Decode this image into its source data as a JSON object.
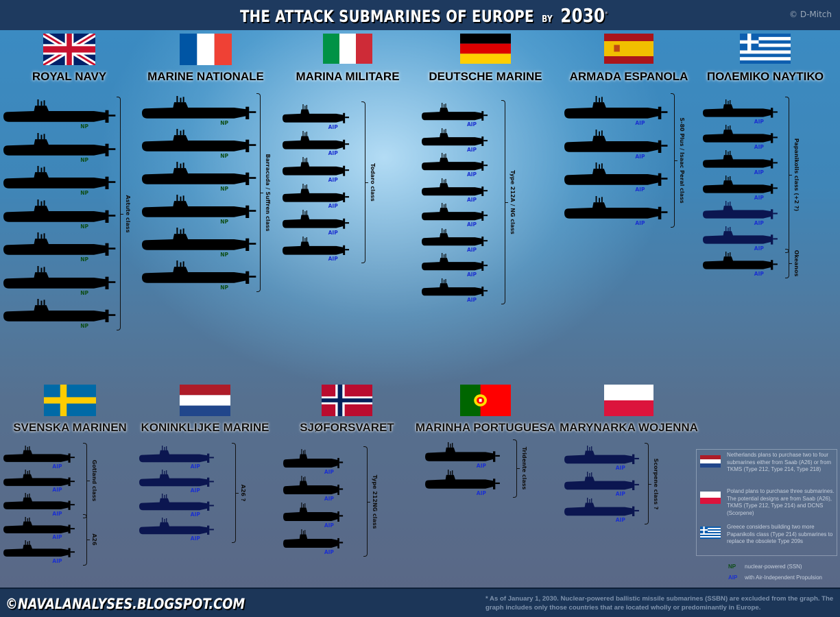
{
  "header": {
    "title": "THE ATTACK SUBMARINES OF EUROPE",
    "by": "BY",
    "year": "2030",
    "asterisk": "*",
    "credit": "© D-Mitch"
  },
  "colors": {
    "header_bg": "#1e3a5f",
    "existing_sub": "#000000",
    "planned_sub": "#0b1650",
    "np_label": "#0d4d16",
    "aip_label": "#1a2fd0"
  },
  "navies": [
    {
      "flag": "uk-flag",
      "name": "ROYAL  NAVY",
      "groups": [
        {
          "label": "Astute class",
          "subs": [
            {
              "propulsion": "NP"
            },
            {
              "propulsion": "NP"
            },
            {
              "propulsion": "NP"
            },
            {
              "propulsion": "NP"
            },
            {
              "propulsion": "NP"
            },
            {
              "propulsion": "NP"
            },
            {
              "propulsion": "NP"
            }
          ]
        }
      ]
    },
    {
      "flag": "france-flag",
      "name": "MARINE  NATIONALE",
      "groups": [
        {
          "label": "Barracuda / Suffren class",
          "subs": [
            {
              "propulsion": "NP"
            },
            {
              "propulsion": "NP"
            },
            {
              "propulsion": "NP"
            },
            {
              "propulsion": "NP"
            },
            {
              "propulsion": "NP"
            },
            {
              "propulsion": "NP"
            }
          ]
        }
      ]
    },
    {
      "flag": "italy-flag",
      "name": "MARINA  MILITARE",
      "groups": [
        {
          "label": "Todaro class",
          "subs": [
            {
              "propulsion": "AIP"
            },
            {
              "propulsion": "AIP"
            },
            {
              "propulsion": "AIP"
            },
            {
              "propulsion": "AIP"
            },
            {
              "propulsion": "AIP"
            },
            {
              "propulsion": "AIP"
            }
          ]
        }
      ]
    },
    {
      "flag": "germany-flag",
      "name": "DEUTSCHE  MARINE",
      "groups": [
        {
          "label": "Type 212A / NG class",
          "subs": [
            {
              "propulsion": "AIP"
            },
            {
              "propulsion": "AIP"
            },
            {
              "propulsion": "AIP"
            },
            {
              "propulsion": "AIP"
            },
            {
              "propulsion": "AIP"
            },
            {
              "propulsion": "AIP"
            },
            {
              "propulsion": "AIP"
            },
            {
              "propulsion": "AIP"
            }
          ]
        }
      ]
    },
    {
      "flag": "spain-flag",
      "name": "ARMADA  ESPANOLA",
      "groups": [
        {
          "label": "S-80 Plus / Isaac Peral class",
          "subs": [
            {
              "propulsion": "AIP"
            },
            {
              "propulsion": "AIP"
            },
            {
              "propulsion": "AIP"
            },
            {
              "propulsion": "AIP"
            }
          ]
        }
      ]
    },
    {
      "flag": "greece-flag",
      "name": "ΠΟΛΕΜΙΚΟ ΝΑΥΤΙΚΟ",
      "groups": [
        {
          "label": "Papanikolis class (+2 ?)",
          "subs": [
            {
              "propulsion": "AIP"
            },
            {
              "propulsion": "AIP"
            },
            {
              "propulsion": "AIP"
            },
            {
              "propulsion": "AIP"
            },
            {
              "propulsion": "AIP",
              "planned": true
            },
            {
              "propulsion": "AIP",
              "planned": true
            }
          ]
        },
        {
          "label": "Okeanos",
          "subs": [
            {
              "propulsion": "AIP"
            }
          ]
        }
      ]
    },
    {
      "flag": "sweden-flag",
      "name": "SVENSKA MARINEN",
      "groups": [
        {
          "label": "Gotland class",
          "subs": [
            {
              "propulsion": "AIP"
            },
            {
              "propulsion": "AIP"
            },
            {
              "propulsion": "AIP"
            }
          ]
        },
        {
          "label": "A26",
          "subs": [
            {
              "propulsion": "AIP"
            },
            {
              "propulsion": "AIP"
            }
          ]
        }
      ]
    },
    {
      "flag": "netherlands-flag",
      "name": "KONINKLIJKE MARINE",
      "groups": [
        {
          "label": "A26 ?",
          "subs": [
            {
              "propulsion": "AIP",
              "planned": true
            },
            {
              "propulsion": "AIP",
              "planned": true
            },
            {
              "propulsion": "AIP",
              "planned": true
            },
            {
              "propulsion": "AIP",
              "planned": true
            }
          ]
        }
      ]
    },
    {
      "flag": "norway-flag",
      "name": "SJØFORSVARET",
      "groups": [
        {
          "label": "Type 212NG class",
          "subs": [
            {
              "propulsion": "AIP"
            },
            {
              "propulsion": "AIP"
            },
            {
              "propulsion": "AIP"
            },
            {
              "propulsion": "AIP"
            }
          ]
        }
      ]
    },
    {
      "flag": "portugal-flag",
      "name": "MARINHA PORTUGUESA",
      "groups": [
        {
          "label": "Tridente class",
          "subs": [
            {
              "propulsion": "AIP"
            },
            {
              "propulsion": "AIP"
            }
          ]
        }
      ]
    },
    {
      "flag": "poland-flag",
      "name": "MARYNARKA WOJENNA",
      "groups": [
        {
          "label": "Scorpene class ?",
          "subs": [
            {
              "propulsion": "AIP",
              "planned": true
            },
            {
              "propulsion": "AIP",
              "planned": true
            },
            {
              "propulsion": "AIP",
              "planned": true
            }
          ]
        }
      ]
    }
  ],
  "notes": [
    {
      "flag": "netherlands-flag",
      "text": "Netherlands plans to purchase two to four  submarines either from Saab (A26) or  from TKMS (Type 212, Type 214, Type 218)"
    },
    {
      "flag": "poland-flag",
      "text": "Poland plans to purchase three submarines. The potential designs are from Saab  (A26), TKMS (Type 212, Type 214) and DCNS (Scorpene)"
    },
    {
      "flag": "greece-flag",
      "text": "Greece considers building two more Papanikolis class (Type 214) submarines to replace the obsolete Type 209s"
    }
  ],
  "legend": [
    {
      "code": "NP",
      "text": "nuclear-powered (SSN)"
    },
    {
      "code": "AIP",
      "text": "with Air-Independent Propulsion"
    }
  ],
  "footer": {
    "site": "©NAVALANALYSES.BLOGSPOT.COM",
    "note": "* As of January 1, 2030. Nuclear-powered ballistic missile submarines (SSBN)  are excluded from the graph. The graph includes only those countries that  are located wholly or predominantly in Europe."
  }
}
